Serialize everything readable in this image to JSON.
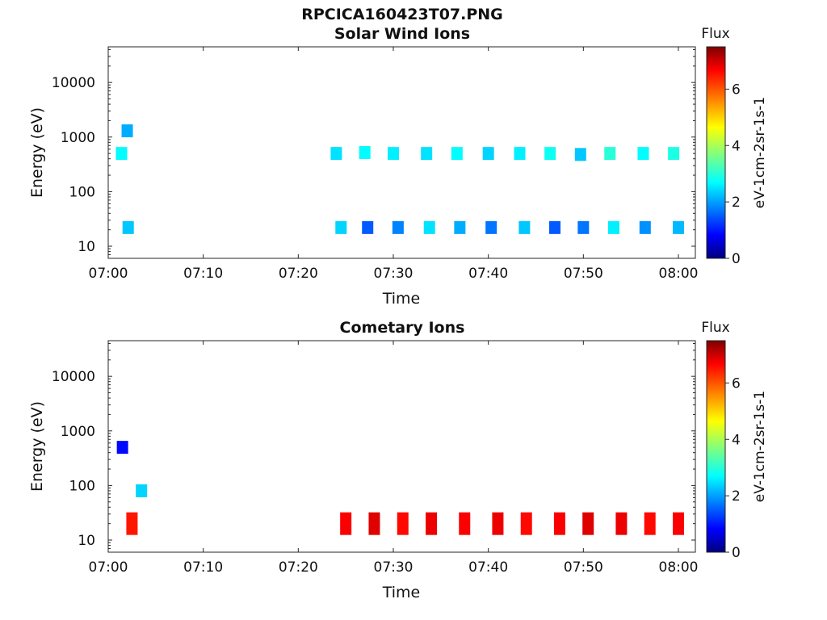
{
  "figure_title": "RPCICA160423T07.PNG",
  "chart_data": [
    {
      "type": "heatmap",
      "title": "Solar Wind Ions",
      "xlabel": "Time",
      "ylabel": "Energy (eV)",
      "x_ticks": [
        "07:00",
        "07:10",
        "07:20",
        "07:30",
        "07:40",
        "07:50",
        "08:00"
      ],
      "y_ticks": [
        "10",
        "100",
        "1000",
        "10000"
      ],
      "y_scale": "log",
      "colorbar": {
        "label": "Flux",
        "unit": "eV-1cm-2sr-1s-1",
        "ticks": [
          "0",
          "2",
          "4",
          "6"
        ],
        "range": [
          0,
          7.5
        ]
      },
      "blocks": [
        {
          "t": 1.4,
          "e": 500,
          "c": 2.8
        },
        {
          "t": 2.0,
          "e": 1300,
          "c": 2.2
        },
        {
          "t": 2.1,
          "e": 22,
          "c": 2.4
        },
        {
          "t": 24.0,
          "e": 500,
          "c": 2.6
        },
        {
          "t": 24.5,
          "e": 22,
          "c": 2.5
        },
        {
          "t": 27.0,
          "e": 520,
          "c": 2.8
        },
        {
          "t": 27.3,
          "e": 22,
          "c": 1.6
        },
        {
          "t": 30.0,
          "e": 500,
          "c": 2.7
        },
        {
          "t": 30.5,
          "e": 22,
          "c": 1.9
        },
        {
          "t": 33.5,
          "e": 500,
          "c": 2.6
        },
        {
          "t": 33.8,
          "e": 22,
          "c": 2.6
        },
        {
          "t": 36.7,
          "e": 500,
          "c": 2.8
        },
        {
          "t": 37.0,
          "e": 22,
          "c": 2.2
        },
        {
          "t": 40.0,
          "e": 500,
          "c": 2.5
        },
        {
          "t": 40.3,
          "e": 22,
          "c": 1.8
        },
        {
          "t": 43.3,
          "e": 500,
          "c": 2.7
        },
        {
          "t": 43.8,
          "e": 22,
          "c": 2.4
        },
        {
          "t": 46.5,
          "e": 500,
          "c": 2.9
        },
        {
          "t": 47.0,
          "e": 22,
          "c": 1.6
        },
        {
          "t": 49.7,
          "e": 480,
          "c": 2.4
        },
        {
          "t": 50.0,
          "e": 22,
          "c": 1.8
        },
        {
          "t": 52.8,
          "e": 500,
          "c": 3.1
        },
        {
          "t": 53.2,
          "e": 22,
          "c": 2.7
        },
        {
          "t": 56.3,
          "e": 500,
          "c": 2.8
        },
        {
          "t": 56.5,
          "e": 22,
          "c": 2.0
        },
        {
          "t": 59.5,
          "e": 500,
          "c": 3.0
        },
        {
          "t": 60.0,
          "e": 22,
          "c": 2.3
        }
      ]
    },
    {
      "type": "heatmap",
      "title": "Cometary Ions",
      "xlabel": "Time",
      "ylabel": "Energy (eV)",
      "x_ticks": [
        "07:00",
        "07:10",
        "07:20",
        "07:30",
        "07:40",
        "07:50",
        "08:00"
      ],
      "y_ticks": [
        "10",
        "100",
        "1000",
        "10000"
      ],
      "y_scale": "log",
      "colorbar": {
        "label": "Flux",
        "unit": "eV-1cm-2sr-1s-1",
        "ticks": [
          "0",
          "2",
          "4",
          "6"
        ],
        "range": [
          0,
          7.5
        ]
      },
      "blocks": [
        {
          "t": 1.5,
          "e": 500,
          "c": 1.0
        },
        {
          "t": 2.5,
          "e": 20,
          "c": 6.4
        },
        {
          "t": 3.5,
          "e": 80,
          "c": 2.5
        },
        {
          "t": 25.0,
          "e": 20,
          "c": 6.6
        },
        {
          "t": 28.0,
          "e": 20,
          "c": 6.8
        },
        {
          "t": 31.0,
          "e": 20,
          "c": 6.5
        },
        {
          "t": 34.0,
          "e": 20,
          "c": 6.7
        },
        {
          "t": 37.5,
          "e": 20,
          "c": 6.6
        },
        {
          "t": 41.0,
          "e": 20,
          "c": 6.7
        },
        {
          "t": 44.0,
          "e": 20,
          "c": 6.5
        },
        {
          "t": 47.5,
          "e": 20,
          "c": 6.6
        },
        {
          "t": 50.5,
          "e": 20,
          "c": 6.8
        },
        {
          "t": 54.0,
          "e": 20,
          "c": 6.7
        },
        {
          "t": 57.0,
          "e": 20,
          "c": 6.5
        },
        {
          "t": 60.0,
          "e": 20,
          "c": 6.6
        }
      ]
    }
  ]
}
